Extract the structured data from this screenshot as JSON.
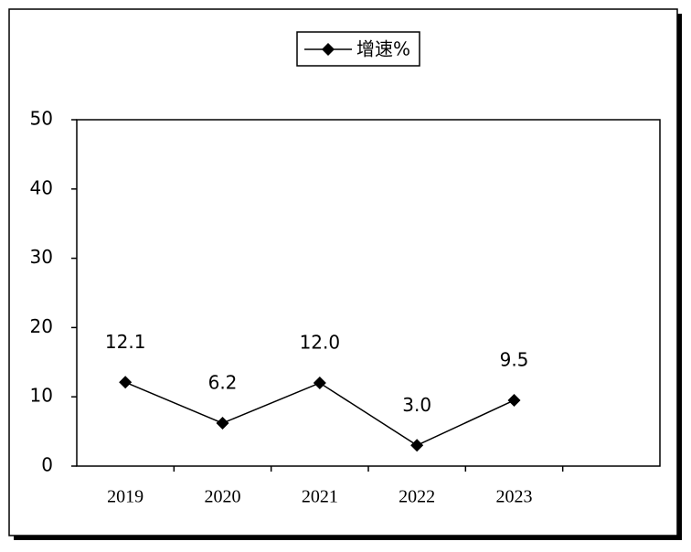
{
  "chart_data": {
    "type": "line",
    "categories": [
      "2019",
      "2020",
      "2021",
      "2022",
      "2023",
      null
    ],
    "series": [
      {
        "name": "增速%",
        "color": "#000000",
        "values": [
          12.1,
          6.2,
          12.0,
          3.0,
          9.5,
          null
        ],
        "value_labels": [
          "12.1",
          "6.2",
          "12.0",
          "3.0",
          "9.5",
          null
        ]
      }
    ],
    "ylim": [
      0,
      50
    ],
    "yticks": [
      0,
      10,
      20,
      30,
      40,
      50
    ],
    "grid": false,
    "legend": "top"
  }
}
